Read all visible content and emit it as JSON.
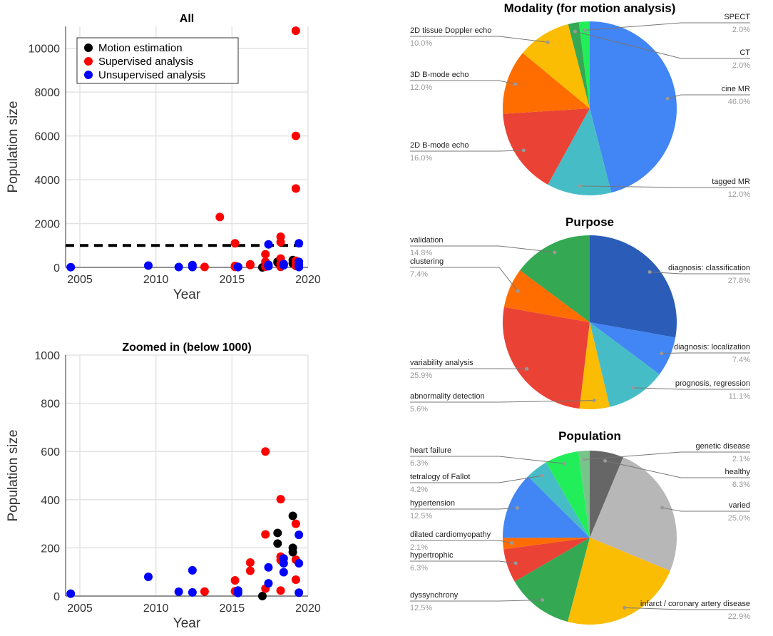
{
  "chart_data": [
    {
      "type": "scatter",
      "title": "All",
      "xlabel": "Year",
      "ylabel": "Population size",
      "xlim": [
        2004.05,
        2020
      ],
      "ylim": [
        0,
        11000
      ],
      "xticks": [
        "2005",
        "2010",
        "2015",
        "2020"
      ],
      "yticks": [
        "0",
        "2000",
        "4000",
        "6000",
        "8000",
        "10000"
      ],
      "threshold_line": 1000,
      "legend_position": "top-left",
      "series": [
        {
          "name": "Motion estimation",
          "color": "#000000",
          "points": [
            [
              2017.0,
              0
            ],
            [
              2018.0,
              262
            ],
            [
              2018.0,
              218
            ],
            [
              2019.0,
              333
            ],
            [
              2019.0,
              200
            ],
            [
              2019.0,
              182
            ]
          ]
        },
        {
          "name": "Supervised analysis",
          "color": "#ff0000",
          "points": [
            [
              2013.2,
              19
            ],
            [
              2014.2,
              2300
            ],
            [
              2015.2,
              1100
            ],
            [
              2015.2,
              65
            ],
            [
              2015.2,
              20
            ],
            [
              2016.2,
              139
            ],
            [
              2016.2,
              105
            ],
            [
              2017.2,
              600
            ],
            [
              2017.2,
              256
            ],
            [
              2017.2,
              31
            ],
            [
              2018.2,
              1400
            ],
            [
              2018.2,
              1150
            ],
            [
              2018.2,
              402
            ],
            [
              2018.2,
              164
            ],
            [
              2018.2,
              149
            ],
            [
              2018.2,
              23
            ],
            [
              2019.2,
              10800
            ],
            [
              2019.2,
              6000
            ],
            [
              2019.2,
              3600
            ],
            [
              2019.2,
              300
            ],
            [
              2019.2,
              151
            ],
            [
              2019.2,
              68
            ]
          ]
        },
        {
          "name": "Unsupervised analysis",
          "color": "#0000ff",
          "points": [
            [
              2004.4,
              10
            ],
            [
              2009.5,
              80
            ],
            [
              2011.5,
              18
            ],
            [
              2012.4,
              107
            ],
            [
              2012.4,
              15
            ],
            [
              2015.4,
              23
            ],
            [
              2015.4,
              13
            ],
            [
              2017.4,
              1050
            ],
            [
              2017.4,
              119
            ],
            [
              2017.4,
              53
            ],
            [
              2018.4,
              156
            ],
            [
              2018.4,
              136
            ],
            [
              2018.4,
              99
            ],
            [
              2019.4,
              1100
            ],
            [
              2019.4,
              254
            ],
            [
              2019.4,
              136
            ],
            [
              2019.4,
              14
            ]
          ]
        }
      ]
    },
    {
      "type": "scatter",
      "title": "Zoomed in (below 1000)",
      "xlabel": "Year",
      "ylabel": "Population size",
      "xlim": [
        2004.05,
        2020
      ],
      "ylim": [
        0,
        1000
      ],
      "xticks": [
        "2005",
        "2010",
        "2015",
        "2020"
      ],
      "yticks": [
        "0",
        "200",
        "400",
        "600",
        "800",
        "1000"
      ]
    },
    {
      "type": "pie",
      "title": "Modality (for motion analysis)",
      "slices": [
        {
          "label": "cine MR",
          "value": 46.0,
          "pct": "46.0%",
          "color": "#4285f4"
        },
        {
          "label": "tagged MR",
          "value": 12.0,
          "pct": "12.0%",
          "color": "#46bdc6"
        },
        {
          "label": "2D B-mode echo",
          "value": 16.0,
          "pct": "16.0%",
          "color": "#ea4335"
        },
        {
          "label": "3D B-mode echo",
          "value": 12.0,
          "pct": "12.0%",
          "color": "#ff6d01"
        },
        {
          "label": "2D tissue Doppler echo",
          "value": 10.0,
          "pct": "10.0%",
          "color": "#fbbc04"
        },
        {
          "label": "CT",
          "value": 2.0,
          "pct": "2.0%",
          "color": "#34a853"
        },
        {
          "label": "SPECT",
          "value": 2.0,
          "pct": "2.0%",
          "color": "#22ee5a"
        }
      ]
    },
    {
      "type": "pie",
      "title": "Purpose",
      "slices": [
        {
          "label": "diagnosis: classification",
          "value": 27.8,
          "pct": "27.8%",
          "color": "#2a5cb8"
        },
        {
          "label": "diagnosis: localization",
          "value": 7.4,
          "pct": "7.4%",
          "color": "#4285f4"
        },
        {
          "label": "prognosis, regression",
          "value": 11.1,
          "pct": "11.1%",
          "color": "#46bdc6"
        },
        {
          "label": "abnormality detection",
          "value": 5.6,
          "pct": "5.6%",
          "color": "#fbbc04"
        },
        {
          "label": "variability analysis",
          "value": 25.9,
          "pct": "25.9%",
          "color": "#ea4335"
        },
        {
          "label": "clustering",
          "value": 7.4,
          "pct": "7.4%",
          "color": "#ff6d01"
        },
        {
          "label": "validation",
          "value": 14.8,
          "pct": "14.8%",
          "color": "#34a853"
        }
      ]
    },
    {
      "type": "pie",
      "title": "Population",
      "slices": [
        {
          "label": "healthy",
          "value": 6.3,
          "pct": "6.3%",
          "color": "#666666"
        },
        {
          "label": "varied",
          "value": 25.0,
          "pct": "25.0%",
          "color": "#b7b7b7"
        },
        {
          "label": "infarct / coronary artery disease",
          "value": 22.9,
          "pct": "22.9%",
          "color": "#fbbc04"
        },
        {
          "label": "dyssynchrony",
          "value": 12.5,
          "pct": "12.5%",
          "color": "#34a853"
        },
        {
          "label": "hypertrophic",
          "value": 6.3,
          "pct": "6.3%",
          "color": "#ea4335"
        },
        {
          "label": "dilated cardiomyopathy",
          "value": 2.1,
          "pct": "2.1%",
          "color": "#ff6d01"
        },
        {
          "label": "hypertension",
          "value": 12.5,
          "pct": "12.5%",
          "color": "#4285f4"
        },
        {
          "label": "tetralogy of Fallot",
          "value": 4.2,
          "pct": "4.2%",
          "color": "#46bdc6"
        },
        {
          "label": "heart failure",
          "value": 6.3,
          "pct": "6.3%",
          "color": "#22ee5a"
        },
        {
          "label": "genetic disease",
          "value": 2.1,
          "pct": "2.1%",
          "color": "#77c58a"
        }
      ]
    }
  ]
}
